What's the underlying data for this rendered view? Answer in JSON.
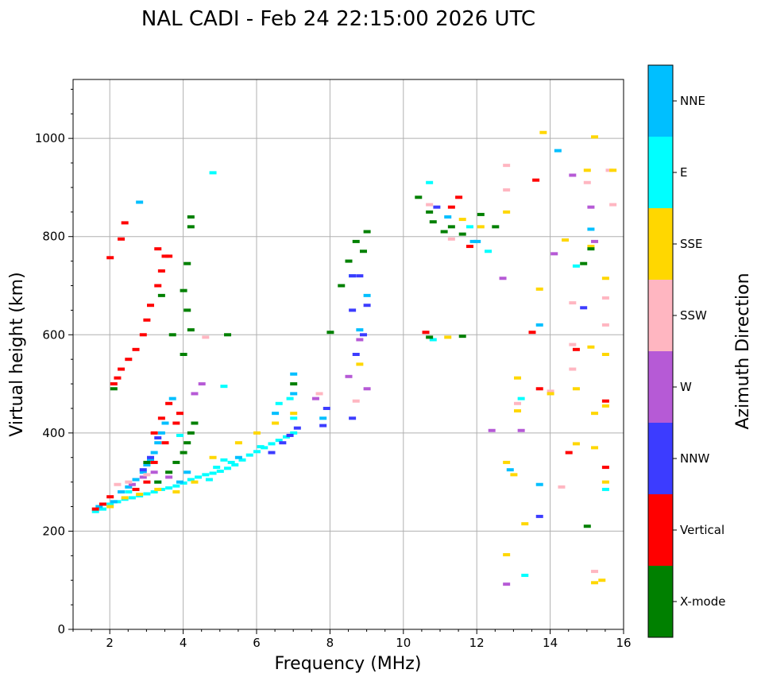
{
  "chart_data": {
    "type": "scatter",
    "title": "NAL CADI - Feb 24 22:15:00 2026 UTC",
    "xlabel": "Frequency (MHz)",
    "ylabel": "Virtual height (km)",
    "xlim": [
      1.0,
      16.0
    ],
    "ylim": [
      0,
      1120
    ],
    "xticks": [
      2,
      4,
      6,
      8,
      10,
      12,
      14,
      16
    ],
    "yticks": [
      0,
      200,
      400,
      600,
      800,
      1000
    ],
    "grid": true,
    "colorbar": {
      "label": "Azimuth Direction",
      "categories": [
        {
          "name": "X-mode",
          "color": "#008000"
        },
        {
          "name": "Vertical",
          "color": "#ff0000"
        },
        {
          "name": "NNW",
          "color": "#3c3cff"
        },
        {
          "name": "W",
          "color": "#b65ad6"
        },
        {
          "name": "SSW",
          "color": "#ffb6c1"
        },
        {
          "name": "SSE",
          "color": "#ffd700"
        },
        {
          "name": "E",
          "color": "#00ffff"
        },
        {
          "name": "NNE",
          "color": "#00bfff"
        }
      ]
    },
    "series": [
      {
        "name": "E",
        "points": [
          [
            1.6,
            240
          ],
          [
            1.8,
            245
          ],
          [
            2.0,
            255
          ],
          [
            2.2,
            260
          ],
          [
            2.4,
            265
          ],
          [
            2.6,
            268
          ],
          [
            2.8,
            272
          ],
          [
            3.0,
            276
          ],
          [
            3.2,
            280
          ],
          [
            3.4,
            285
          ],
          [
            3.6,
            288
          ],
          [
            3.8,
            292
          ],
          [
            4.0,
            298
          ],
          [
            4.2,
            305
          ],
          [
            4.4,
            310
          ],
          [
            4.6,
            315
          ],
          [
            4.8,
            318
          ],
          [
            5.0,
            322
          ],
          [
            5.2,
            328
          ],
          [
            5.4,
            335
          ],
          [
            5.6,
            345
          ],
          [
            5.8,
            355
          ],
          [
            6.0,
            362
          ],
          [
            6.2,
            370
          ],
          [
            6.4,
            378
          ],
          [
            6.6,
            385
          ],
          [
            6.8,
            392
          ],
          [
            7.0,
            400
          ],
          [
            7.0,
            430
          ],
          [
            6.6,
            460
          ],
          [
            4.9,
            330
          ],
          [
            5.1,
            345
          ],
          [
            5.3,
            340
          ],
          [
            4.7,
            305
          ],
          [
            2.5,
            280
          ],
          [
            3.3,
            300
          ],
          [
            6.1,
            372
          ],
          [
            6.9,
            470
          ],
          [
            5.1,
            495
          ],
          [
            4.8,
            930
          ],
          [
            10.7,
            910
          ],
          [
            12.3,
            770
          ],
          [
            13.2,
            470
          ],
          [
            14.7,
            740
          ],
          [
            15.5,
            285
          ],
          [
            13.3,
            110
          ],
          [
            10.8,
            590
          ],
          [
            11.8,
            820
          ],
          [
            3.9,
            395
          ]
        ]
      },
      {
        "name": "NNE",
        "points": [
          [
            1.7,
            250
          ],
          [
            2.1,
            260
          ],
          [
            2.3,
            280
          ],
          [
            2.5,
            290
          ],
          [
            2.7,
            305
          ],
          [
            2.9,
            320
          ],
          [
            3.1,
            345
          ],
          [
            3.3,
            380
          ],
          [
            3.5,
            420
          ],
          [
            3.7,
            470
          ],
          [
            3.4,
            400
          ],
          [
            3.2,
            360
          ],
          [
            3.0,
            335
          ],
          [
            3.9,
            300
          ],
          [
            4.1,
            320
          ],
          [
            5.5,
            350
          ],
          [
            6.5,
            440
          ],
          [
            7.0,
            480
          ],
          [
            7.8,
            430
          ],
          [
            8.6,
            720
          ],
          [
            8.8,
            610
          ],
          [
            9.0,
            680
          ],
          [
            12.0,
            790
          ],
          [
            13.7,
            620
          ],
          [
            14.2,
            975
          ],
          [
            15.1,
            815
          ],
          [
            11.2,
            840
          ],
          [
            11.9,
            790
          ],
          [
            13.7,
            295
          ],
          [
            12.9,
            325
          ],
          [
            7.0,
            520
          ],
          [
            2.8,
            870
          ]
        ]
      },
      {
        "name": "NNW",
        "points": [
          [
            6.4,
            360
          ],
          [
            6.7,
            380
          ],
          [
            6.9,
            395
          ],
          [
            7.1,
            410
          ],
          [
            7.8,
            415
          ],
          [
            7.9,
            450
          ],
          [
            8.6,
            430
          ],
          [
            8.7,
            560
          ],
          [
            8.6,
            650
          ],
          [
            8.8,
            720
          ],
          [
            9.0,
            660
          ],
          [
            8.9,
            600
          ],
          [
            14.9,
            655
          ],
          [
            13.7,
            230
          ],
          [
            2.9,
            325
          ],
          [
            3.1,
            350
          ],
          [
            3.3,
            390
          ],
          [
            8.6,
            720
          ],
          [
            10.9,
            860
          ]
        ]
      },
      {
        "name": "W",
        "points": [
          [
            2.6,
            295
          ],
          [
            2.9,
            310
          ],
          [
            3.2,
            320
          ],
          [
            3.6,
            310
          ],
          [
            4.3,
            480
          ],
          [
            4.5,
            500
          ],
          [
            8.5,
            515
          ],
          [
            8.8,
            590
          ],
          [
            12.4,
            405
          ],
          [
            13.2,
            405
          ],
          [
            12.7,
            715
          ],
          [
            14.1,
            765
          ],
          [
            14.6,
            925
          ],
          [
            15.1,
            860
          ],
          [
            15.2,
            790
          ],
          [
            12.8,
            92
          ],
          [
            7.6,
            470
          ],
          [
            9.0,
            490
          ]
        ]
      },
      {
        "name": "SSW",
        "points": [
          [
            2.2,
            295
          ],
          [
            2.5,
            300
          ],
          [
            3.0,
            315
          ],
          [
            4.6,
            595
          ],
          [
            7.7,
            480
          ],
          [
            8.7,
            465
          ],
          [
            10.7,
            865
          ],
          [
            11.3,
            795
          ],
          [
            12.8,
            895
          ],
          [
            12.8,
            945
          ],
          [
            14.6,
            665
          ],
          [
            14.6,
            530
          ],
          [
            14.6,
            580
          ],
          [
            15.0,
            910
          ],
          [
            15.5,
            675
          ],
          [
            15.5,
            620
          ],
          [
            15.7,
            865
          ],
          [
            14.3,
            290
          ],
          [
            15.2,
            118
          ],
          [
            14.0,
            485
          ],
          [
            15.6,
            935
          ],
          [
            13.1,
            460
          ]
        ]
      },
      {
        "name": "SSE",
        "points": [
          [
            2.0,
            250
          ],
          [
            2.4,
            268
          ],
          [
            2.8,
            275
          ],
          [
            3.3,
            285
          ],
          [
            3.8,
            280
          ],
          [
            4.3,
            300
          ],
          [
            4.8,
            350
          ],
          [
            5.5,
            380
          ],
          [
            6.0,
            400
          ],
          [
            6.5,
            420
          ],
          [
            7.0,
            440
          ],
          [
            8.8,
            540
          ],
          [
            11.2,
            595
          ],
          [
            11.6,
            835
          ],
          [
            12.1,
            820
          ],
          [
            12.8,
            850
          ],
          [
            13.1,
            512
          ],
          [
            13.1,
            445
          ],
          [
            13.7,
            693
          ],
          [
            13.8,
            1012
          ],
          [
            14.4,
            793
          ],
          [
            14.7,
            490
          ],
          [
            14.7,
            378
          ],
          [
            15.0,
            935
          ],
          [
            15.1,
            575
          ],
          [
            15.1,
            780
          ],
          [
            15.2,
            1003
          ],
          [
            15.2,
            440
          ],
          [
            15.2,
            370
          ],
          [
            15.5,
            715
          ],
          [
            15.5,
            560
          ],
          [
            15.5,
            455
          ],
          [
            15.5,
            300
          ],
          [
            12.8,
            340
          ],
          [
            12.8,
            152
          ],
          [
            13.0,
            315
          ],
          [
            13.3,
            215
          ],
          [
            15.2,
            95
          ],
          [
            15.4,
            100
          ],
          [
            15.7,
            935
          ],
          [
            14.0,
            480
          ]
        ]
      },
      {
        "name": "Vertical",
        "points": [
          [
            1.6,
            245
          ],
          [
            1.8,
            255
          ],
          [
            2.0,
            270
          ],
          [
            2.1,
            500
          ],
          [
            2.2,
            512
          ],
          [
            2.3,
            530
          ],
          [
            2.5,
            550
          ],
          [
            2.7,
            570
          ],
          [
            2.9,
            600
          ],
          [
            3.0,
            630
          ],
          [
            3.1,
            660
          ],
          [
            3.3,
            700
          ],
          [
            3.4,
            730
          ],
          [
            3.5,
            760
          ],
          [
            3.3,
            775
          ],
          [
            3.6,
            760
          ],
          [
            2.0,
            757
          ],
          [
            2.4,
            828
          ],
          [
            2.3,
            795
          ],
          [
            3.2,
            400
          ],
          [
            3.4,
            430
          ],
          [
            3.6,
            460
          ],
          [
            3.5,
            380
          ],
          [
            3.2,
            340
          ],
          [
            3.0,
            300
          ],
          [
            2.7,
            285
          ],
          [
            10.6,
            605
          ],
          [
            11.5,
            880
          ],
          [
            11.3,
            860
          ],
          [
            11.8,
            780
          ],
          [
            13.5,
            605
          ],
          [
            13.6,
            915
          ],
          [
            13.7,
            490
          ],
          [
            14.5,
            360
          ],
          [
            14.7,
            570
          ],
          [
            15.5,
            330
          ],
          [
            15.5,
            465
          ],
          [
            3.8,
            420
          ],
          [
            3.9,
            440
          ]
        ]
      },
      {
        "name": "X-mode",
        "points": [
          [
            3.0,
            340
          ],
          [
            3.3,
            300
          ],
          [
            3.6,
            320
          ],
          [
            3.8,
            340
          ],
          [
            4.0,
            360
          ],
          [
            4.1,
            380
          ],
          [
            4.2,
            400
          ],
          [
            4.3,
            420
          ],
          [
            4.2,
            840
          ],
          [
            4.2,
            820
          ],
          [
            4.1,
            745
          ],
          [
            4.0,
            690
          ],
          [
            4.1,
            650
          ],
          [
            4.2,
            610
          ],
          [
            5.2,
            600
          ],
          [
            7.0,
            500
          ],
          [
            8.0,
            605
          ],
          [
            8.3,
            700
          ],
          [
            8.5,
            750
          ],
          [
            8.7,
            790
          ],
          [
            9.0,
            810
          ],
          [
            8.9,
            770
          ],
          [
            10.4,
            880
          ],
          [
            10.7,
            850
          ],
          [
            10.8,
            830
          ],
          [
            11.1,
            810
          ],
          [
            11.3,
            820
          ],
          [
            11.6,
            805
          ],
          [
            12.1,
            845
          ],
          [
            12.5,
            820
          ],
          [
            14.9,
            745
          ],
          [
            15.1,
            775
          ],
          [
            15.0,
            210
          ],
          [
            11.6,
            597
          ],
          [
            10.7,
            595
          ],
          [
            3.4,
            680
          ],
          [
            3.7,
            600
          ],
          [
            4.0,
            560
          ],
          [
            2.1,
            490
          ]
        ]
      }
    ]
  }
}
